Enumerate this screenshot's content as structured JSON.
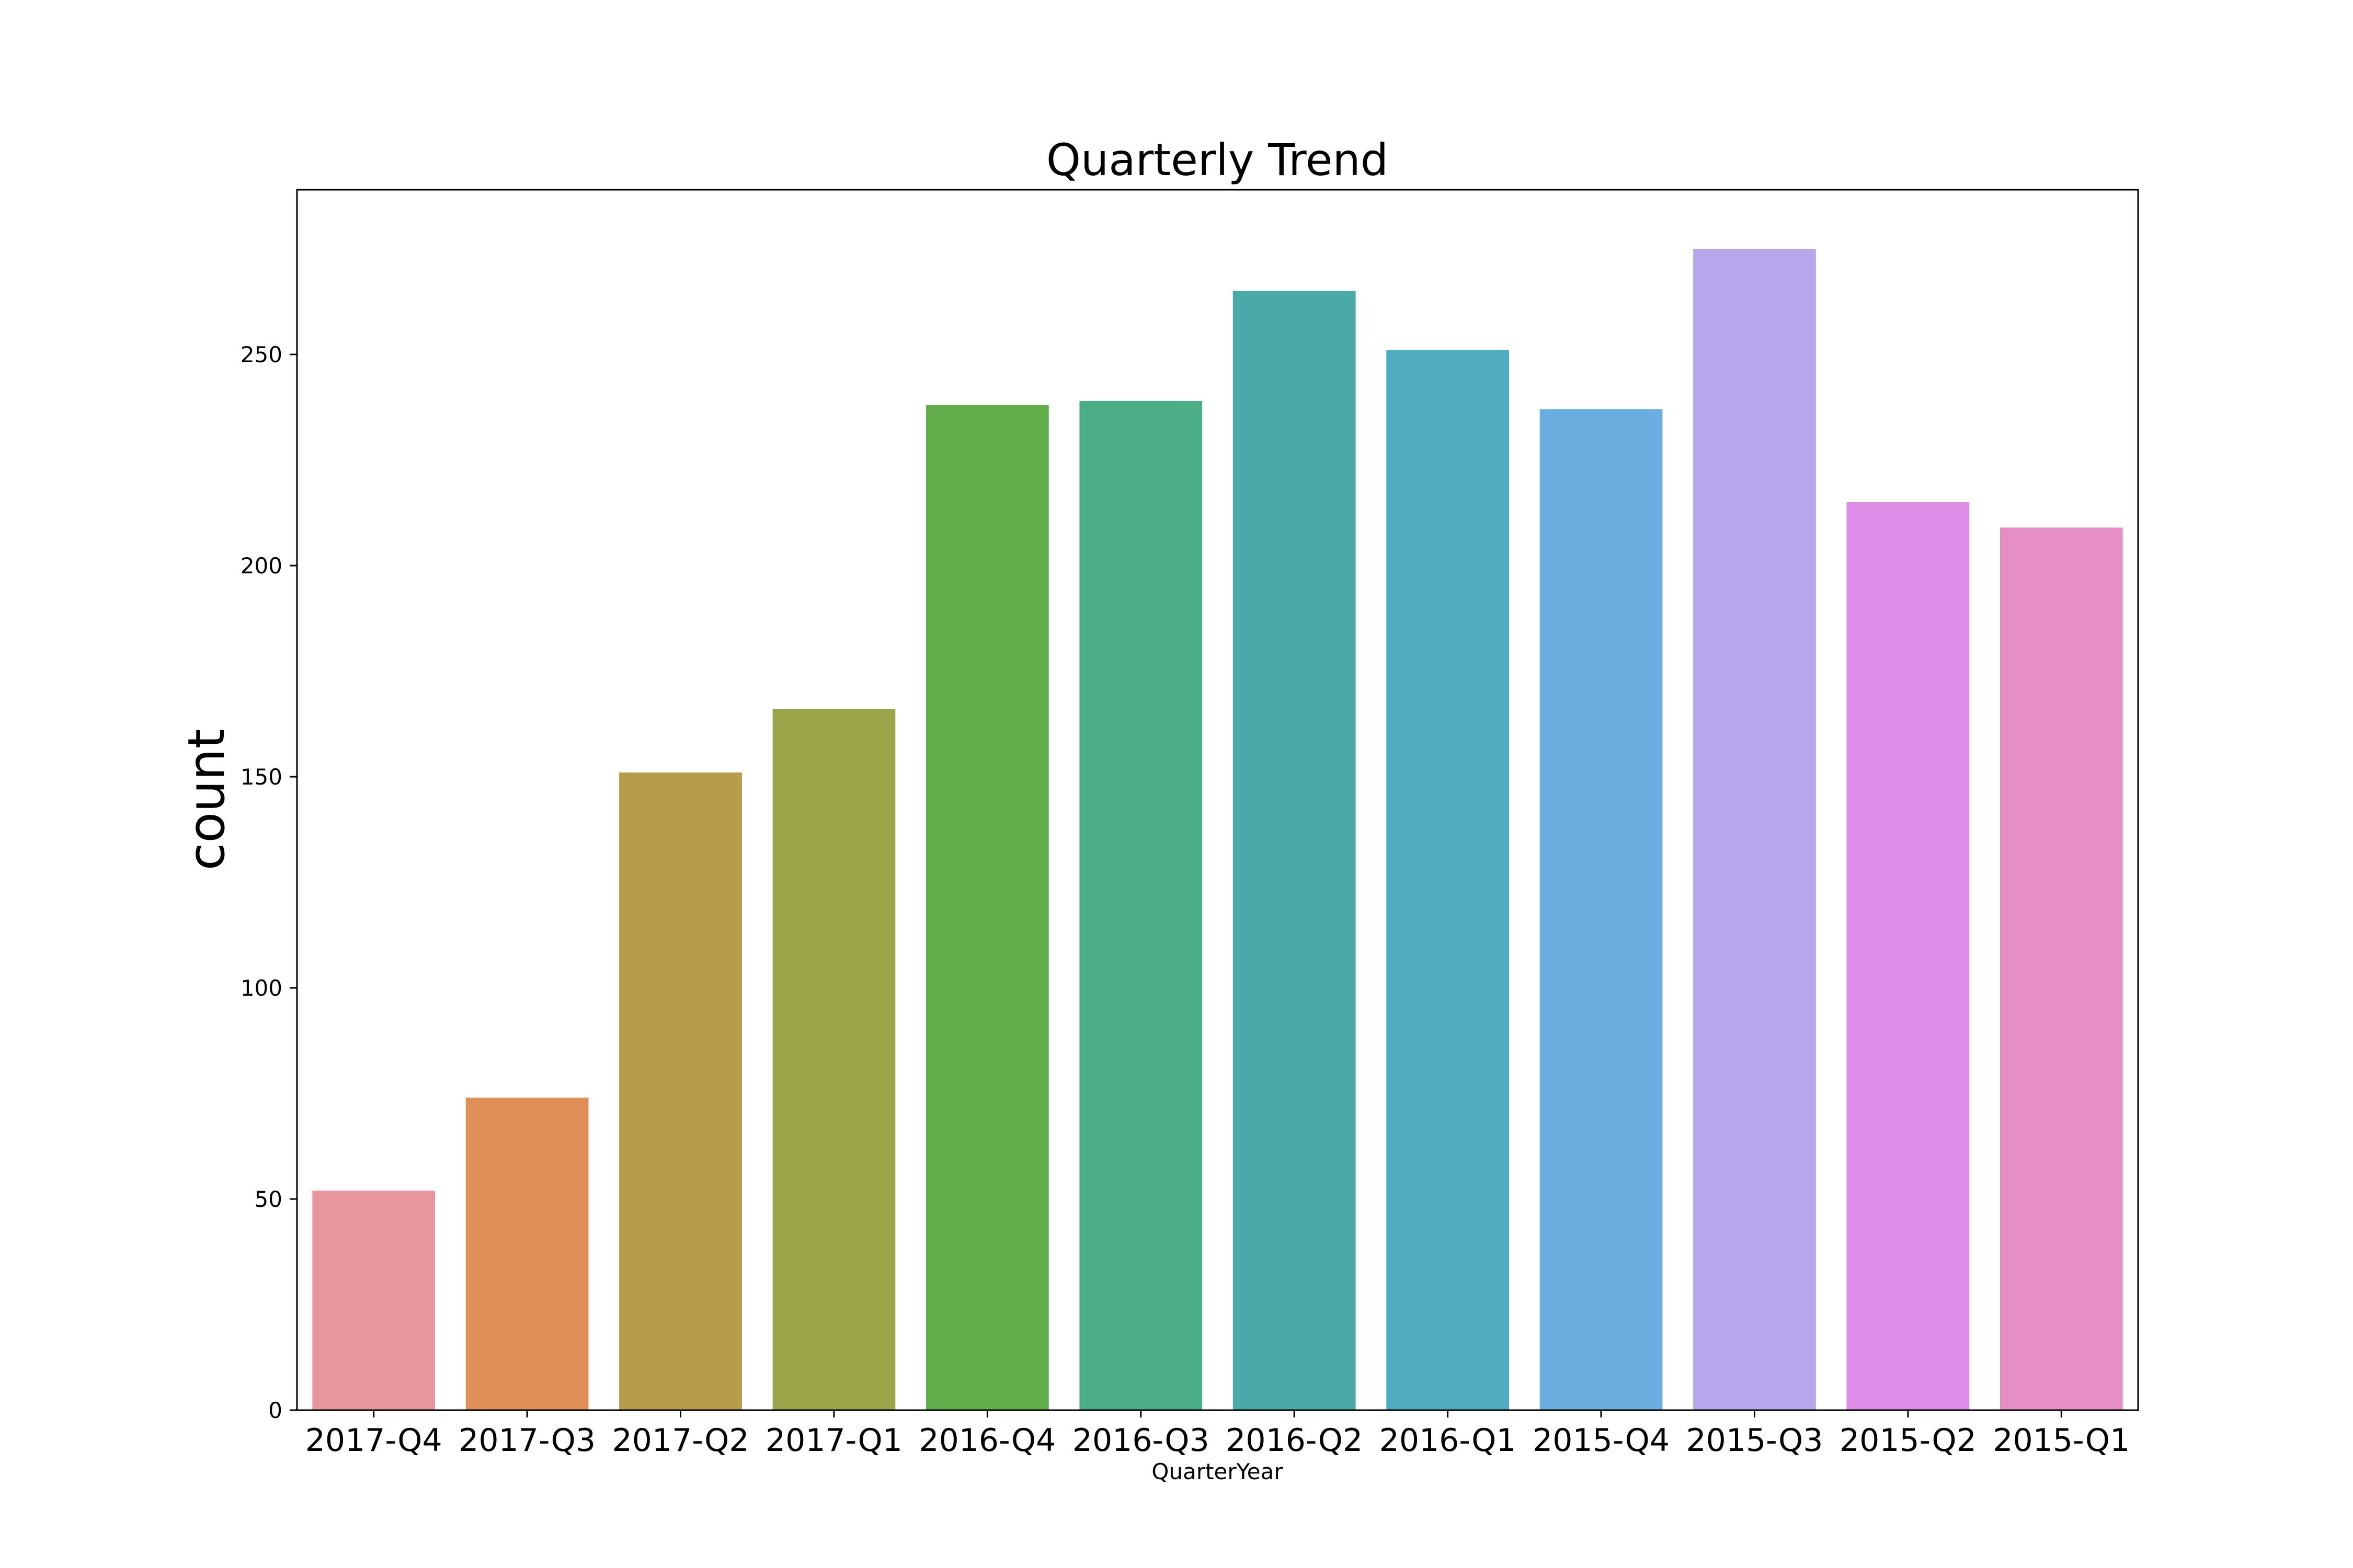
{
  "chart_data": {
    "type": "bar",
    "title": "Quarterly Trend",
    "xlabel": "QuarterYear",
    "ylabel": "count",
    "categories": [
      "2017-Q4",
      "2017-Q3",
      "2017-Q2",
      "2017-Q1",
      "2016-Q4",
      "2016-Q3",
      "2016-Q2",
      "2016-Q1",
      "2015-Q4",
      "2015-Q3",
      "2015-Q2",
      "2015-Q1"
    ],
    "values": [
      52,
      74,
      151,
      166,
      238,
      239,
      265,
      251,
      237,
      275,
      215,
      209
    ],
    "colors": [
      "#e8959f",
      "#e08f57",
      "#b89b4b",
      "#9aa449",
      "#61ae4b",
      "#4bae88",
      "#4aaaa8",
      "#4facc0",
      "#6aaee0",
      "#b6a7eb",
      "#dd8de6",
      "#e68fc4"
    ],
    "ylim": [
      0,
      289
    ],
    "yticks": [
      0,
      50,
      100,
      150,
      200,
      250
    ],
    "grid": false,
    "legend": false
  }
}
